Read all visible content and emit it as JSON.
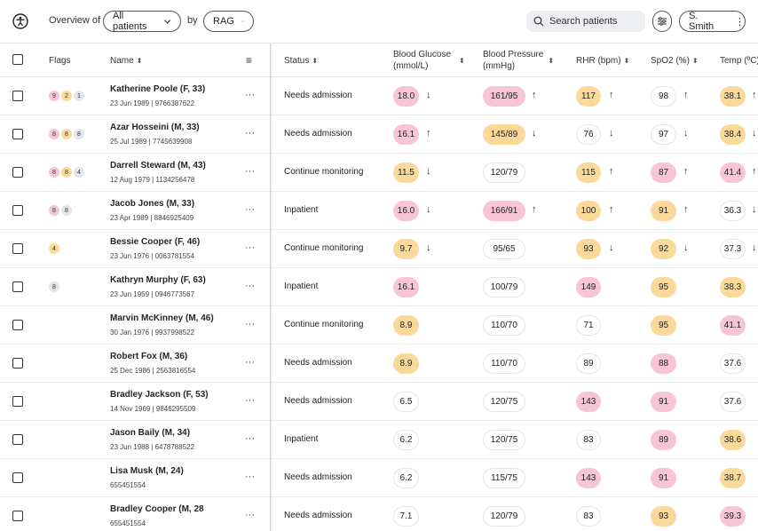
{
  "header": {
    "overview_label": "Overview of",
    "patients_select": "All patients",
    "by_label": "by",
    "rag_select": "RAG",
    "search_placeholder": "Search patients",
    "user_name": "S. Smith"
  },
  "columns": {
    "flags": "Flags",
    "name": "Name",
    "status": "Status",
    "glucose_1": "Blood Glucose",
    "glucose_2": "(mmol/L)",
    "bp_1": "Blood Pressure",
    "bp_2": "(mmHg)",
    "rhr": "RHR (bpm)",
    "spo2": "SpO2 (%)",
    "temp": "Temp (ºC)"
  },
  "rows": [
    {
      "name": "Katherine Poole (F, 33)",
      "meta": "23 Jun 1989  |  9766387622",
      "flags": [
        {
          "n": "9",
          "c": "red"
        },
        {
          "n": "2",
          "c": "amber"
        },
        {
          "n": "1",
          "c": "grey"
        }
      ],
      "status": "Needs admission",
      "glucose": {
        "v": "18.0",
        "c": "red",
        "a": "↓"
      },
      "bp": {
        "v": "161/95",
        "c": "red",
        "a": "↑"
      },
      "rhr": {
        "v": "117",
        "c": "amber",
        "a": "↑"
      },
      "spo2": {
        "v": "98",
        "c": "none",
        "a": "↑"
      },
      "temp": {
        "v": "38.1",
        "c": "amber",
        "a": "↑"
      }
    },
    {
      "name": "Azar Hosseini (M, 33)",
      "meta": "25 Jul 1989  |  7745639908",
      "flags": [
        {
          "n": "8",
          "c": "red"
        },
        {
          "n": "8",
          "c": "amber"
        },
        {
          "n": "8",
          "c": "grey"
        }
      ],
      "status": "Needs admission",
      "glucose": {
        "v": "16.1",
        "c": "red",
        "a": "↑"
      },
      "bp": {
        "v": "145/89",
        "c": "amber",
        "a": "↓"
      },
      "rhr": {
        "v": "76",
        "c": "none",
        "a": "↓"
      },
      "spo2": {
        "v": "97",
        "c": "none",
        "a": "↓"
      },
      "temp": {
        "v": "38.4",
        "c": "amber",
        "a": "↓"
      }
    },
    {
      "name": "Darrell Steward (M, 43)",
      "meta": "12 Aug 1979  |  1134256478",
      "flags": [
        {
          "n": "8",
          "c": "red"
        },
        {
          "n": "8",
          "c": "amber"
        },
        {
          "n": "4",
          "c": "grey"
        }
      ],
      "status": "Continue monitoring",
      "glucose": {
        "v": "11.5",
        "c": "amber",
        "a": "↓"
      },
      "bp": {
        "v": "120/79",
        "c": "none",
        "a": ""
      },
      "rhr": {
        "v": "115",
        "c": "amber",
        "a": "↑"
      },
      "spo2": {
        "v": "87",
        "c": "red",
        "a": "↑"
      },
      "temp": {
        "v": "41.4",
        "c": "red",
        "a": "↑"
      }
    },
    {
      "name": "Jacob Jones (M, 33)",
      "meta": "23 Apr 1989  |  8846925409",
      "flags": [
        {
          "n": "8",
          "c": "red"
        },
        {
          "n": "8",
          "c": "grey"
        }
      ],
      "status": "Inpatient",
      "glucose": {
        "v": "16.0",
        "c": "red",
        "a": "↓"
      },
      "bp": {
        "v": "166/91",
        "c": "red",
        "a": "↑"
      },
      "rhr": {
        "v": "100",
        "c": "amber",
        "a": "↑"
      },
      "spo2": {
        "v": "91",
        "c": "amber",
        "a": "↑"
      },
      "temp": {
        "v": "36.3",
        "c": "none",
        "a": "↓"
      }
    },
    {
      "name": "Bessie Cooper (F, 46)",
      "meta": "23 Jun 1976  |  0063781554",
      "flags": [
        {
          "n": "4",
          "c": "amber"
        }
      ],
      "status": "Continue monitoring",
      "glucose": {
        "v": "9.7",
        "c": "amber",
        "a": "↓"
      },
      "bp": {
        "v": "95/65",
        "c": "none",
        "a": ""
      },
      "rhr": {
        "v": "93",
        "c": "amber",
        "a": "↓"
      },
      "spo2": {
        "v": "92",
        "c": "amber",
        "a": "↓"
      },
      "temp": {
        "v": "37.3",
        "c": "none",
        "a": "↓"
      }
    },
    {
      "name": "Kathryn Murphy (F, 63)",
      "meta": "23 Jun 1959  |  0946773567",
      "flags": [
        {
          "n": "8",
          "c": "grey"
        }
      ],
      "status": "Inpatient",
      "glucose": {
        "v": "16.1",
        "c": "red",
        "a": ""
      },
      "bp": {
        "v": "100/79",
        "c": "none",
        "a": ""
      },
      "rhr": {
        "v": "149",
        "c": "red",
        "a": ""
      },
      "spo2": {
        "v": "95",
        "c": "amber",
        "a": ""
      },
      "temp": {
        "v": "38.3",
        "c": "amber",
        "a": ""
      }
    },
    {
      "name": "Marvin McKinney (M, 46)",
      "meta": "30 Jan 1976  |  9937998522",
      "flags": [],
      "status": "Continue monitoring",
      "glucose": {
        "v": "8.9",
        "c": "amber",
        "a": ""
      },
      "bp": {
        "v": "110/70",
        "c": "none",
        "a": ""
      },
      "rhr": {
        "v": "71",
        "c": "none",
        "a": ""
      },
      "spo2": {
        "v": "95",
        "c": "amber",
        "a": ""
      },
      "temp": {
        "v": "41.1",
        "c": "red",
        "a": ""
      }
    },
    {
      "name": "Robert Fox (M, 36)",
      "meta": "25 Dec 1986  |  2563816554",
      "flags": [],
      "status": "Needs admission",
      "glucose": {
        "v": "8.9",
        "c": "amber",
        "a": ""
      },
      "bp": {
        "v": "110/70",
        "c": "none",
        "a": ""
      },
      "rhr": {
        "v": "89",
        "c": "none",
        "a": ""
      },
      "spo2": {
        "v": "88",
        "c": "red",
        "a": ""
      },
      "temp": {
        "v": "37.6",
        "c": "none",
        "a": ""
      }
    },
    {
      "name": "Bradley Jackson (F, 53)",
      "meta": "14 Nov 1969  |  9846295509",
      "flags": [],
      "status": "Needs admission",
      "glucose": {
        "v": "6.5",
        "c": "none",
        "a": ""
      },
      "bp": {
        "v": "120/75",
        "c": "none",
        "a": ""
      },
      "rhr": {
        "v": "143",
        "c": "red",
        "a": ""
      },
      "spo2": {
        "v": "91",
        "c": "red",
        "a": ""
      },
      "temp": {
        "v": "37.6",
        "c": "none",
        "a": ""
      }
    },
    {
      "name": "Jason Baily (M, 34)",
      "meta": "23 Jun 1988  |  6478788522",
      "flags": [],
      "status": "Inpatient",
      "glucose": {
        "v": "6.2",
        "c": "none",
        "a": ""
      },
      "bp": {
        "v": "120/75",
        "c": "none",
        "a": ""
      },
      "rhr": {
        "v": "83",
        "c": "none",
        "a": ""
      },
      "spo2": {
        "v": "89",
        "c": "red",
        "a": ""
      },
      "temp": {
        "v": "38.6",
        "c": "amber",
        "a": ""
      }
    },
    {
      "name": "Lisa Musk (M, 24)",
      "meta": "655451554",
      "flags": [],
      "status": "Needs admission",
      "glucose": {
        "v": "6.2",
        "c": "none",
        "a": ""
      },
      "bp": {
        "v": "115/75",
        "c": "none",
        "a": ""
      },
      "rhr": {
        "v": "143",
        "c": "red",
        "a": ""
      },
      "spo2": {
        "v": "91",
        "c": "red",
        "a": ""
      },
      "temp": {
        "v": "38.7",
        "c": "amber",
        "a": ""
      }
    },
    {
      "name": "Bradley Cooper (M, 28",
      "meta": "655451554",
      "flags": [],
      "status": "Needs admission",
      "glucose": {
        "v": "7.1",
        "c": "none",
        "a": ""
      },
      "bp": {
        "v": "120/79",
        "c": "none",
        "a": ""
      },
      "rhr": {
        "v": "83",
        "c": "none",
        "a": ""
      },
      "spo2": {
        "v": "93",
        "c": "amber",
        "a": ""
      },
      "temp": {
        "v": "39.3",
        "c": "red",
        "a": ""
      }
    }
  ]
}
